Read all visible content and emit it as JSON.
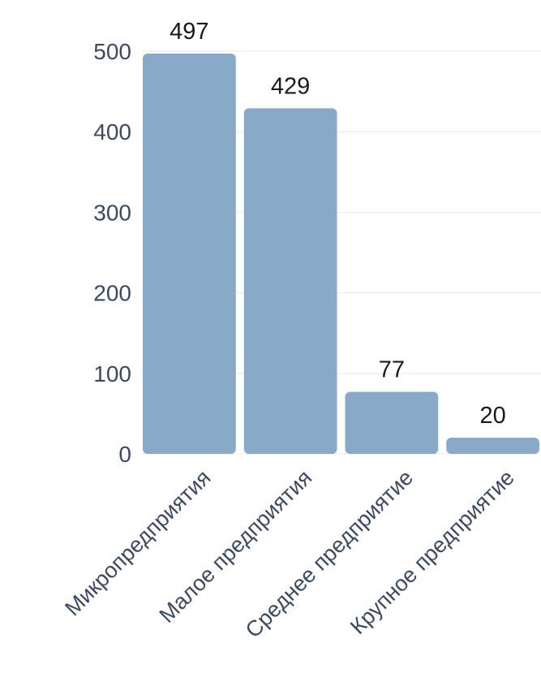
{
  "chart_data": {
    "type": "bar",
    "categories": [
      "Микропредприятия",
      "Малое предприятия",
      "Среднее предприятие",
      "Крупное предприятие"
    ],
    "values": [
      497,
      429,
      77,
      20
    ],
    "ylim": [
      0,
      500
    ],
    "yticks": [
      0,
      100,
      200,
      300,
      400,
      500
    ],
    "grid": true,
    "bar_color": "#88a9c8",
    "title": "",
    "xlabel": "",
    "ylabel": ""
  }
}
